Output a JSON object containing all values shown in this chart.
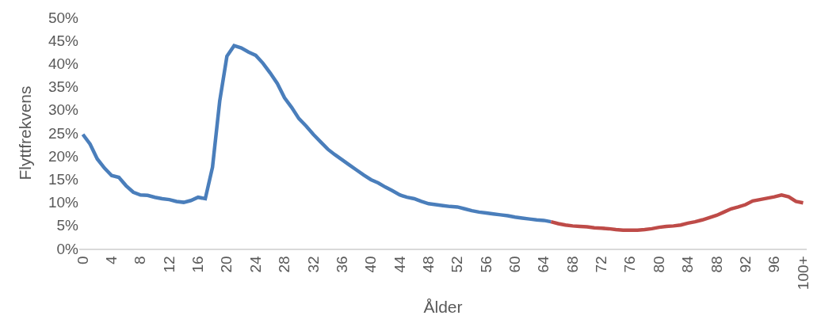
{
  "chart_data": {
    "type": "line",
    "xlabel": "Ålder",
    "ylabel": "Flyttfrekvens",
    "categories": [
      "0",
      null,
      null,
      null,
      "4",
      null,
      null,
      null,
      "8",
      null,
      null,
      null,
      "12",
      null,
      null,
      null,
      "16",
      null,
      null,
      null,
      "20",
      null,
      null,
      null,
      "24",
      null,
      null,
      null,
      "28",
      null,
      null,
      null,
      "32",
      null,
      null,
      null,
      "36",
      null,
      null,
      null,
      "40",
      null,
      null,
      null,
      "44",
      null,
      null,
      null,
      "48",
      null,
      null,
      null,
      "52",
      null,
      null,
      null,
      "56",
      null,
      null,
      null,
      "60",
      null,
      null,
      null,
      "64",
      null,
      null,
      null,
      "68",
      null,
      null,
      null,
      "72",
      null,
      null,
      null,
      "76",
      null,
      null,
      null,
      "80",
      null,
      null,
      null,
      "84",
      null,
      null,
      null,
      "88",
      null,
      null,
      null,
      "92",
      null,
      null,
      null,
      "96",
      null,
      null,
      null,
      "100+"
    ],
    "series": [
      {
        "color": "#4a7ebb",
        "values": [
          24.7,
          22.6,
          19.4,
          17.4,
          15.8,
          15.4,
          13.6,
          12.2,
          11.6,
          11.5,
          11.1,
          10.8,
          10.6,
          10.2,
          10.0,
          10.4,
          11.1,
          10.8,
          17.6,
          31.9,
          41.6,
          43.9,
          43.4,
          42.5,
          41.8,
          40.1,
          38.0,
          35.7,
          32.6,
          30.5,
          28.1,
          26.5,
          24.7,
          23.1,
          21.5,
          20.3,
          19.2,
          18.1,
          17.0,
          15.9,
          14.9,
          14.2,
          13.3,
          12.5,
          11.6,
          11.1,
          10.8,
          10.2,
          9.7,
          9.5,
          9.3,
          9.1,
          9.0,
          8.6,
          8.2,
          7.9,
          7.7,
          7.5,
          7.3,
          7.1,
          6.8,
          6.6,
          6.4,
          6.2,
          6.1,
          5.8,
          null,
          null,
          null,
          null,
          null,
          null,
          null,
          null,
          null,
          null,
          null,
          null,
          null,
          null,
          null,
          null,
          null,
          null,
          null,
          null,
          null,
          null,
          null,
          null,
          null,
          null,
          null,
          null,
          null,
          null,
          null,
          null,
          null,
          null,
          null
        ]
      },
      {
        "color": "#be4b48",
        "values": [
          null,
          null,
          null,
          null,
          null,
          null,
          null,
          null,
          null,
          null,
          null,
          null,
          null,
          null,
          null,
          null,
          null,
          null,
          null,
          null,
          null,
          null,
          null,
          null,
          null,
          null,
          null,
          null,
          null,
          null,
          null,
          null,
          null,
          null,
          null,
          null,
          null,
          null,
          null,
          null,
          null,
          null,
          null,
          null,
          null,
          null,
          null,
          null,
          null,
          null,
          null,
          null,
          null,
          null,
          null,
          null,
          null,
          null,
          null,
          null,
          null,
          null,
          null,
          null,
          null,
          5.8,
          5.4,
          5.1,
          4.9,
          4.8,
          4.7,
          4.5,
          4.4,
          4.3,
          4.1,
          4.0,
          4.0,
          4.0,
          4.1,
          4.3,
          4.6,
          4.8,
          4.9,
          5.1,
          5.5,
          5.8,
          6.2,
          6.7,
          7.2,
          7.9,
          8.6,
          9.0,
          9.5,
          10.3,
          10.6,
          10.9,
          11.2,
          11.6,
          11.2,
          10.2,
          9.9
        ]
      }
    ],
    "ylim": [
      0,
      50
    ],
    "yticks": [
      {
        "value": 0,
        "label": "0%"
      },
      {
        "value": 5,
        "label": "5%"
      },
      {
        "value": 10,
        "label": "10%"
      },
      {
        "value": 15,
        "label": "15%"
      },
      {
        "value": 20,
        "label": "20%"
      },
      {
        "value": 25,
        "label": "25%"
      },
      {
        "value": 30,
        "label": "30%"
      },
      {
        "value": 35,
        "label": "35%"
      },
      {
        "value": 40,
        "label": "40%"
      },
      {
        "value": 45,
        "label": "45%"
      },
      {
        "value": 50,
        "label": "50%"
      }
    ],
    "marker": "none",
    "line_style": "solid"
  }
}
